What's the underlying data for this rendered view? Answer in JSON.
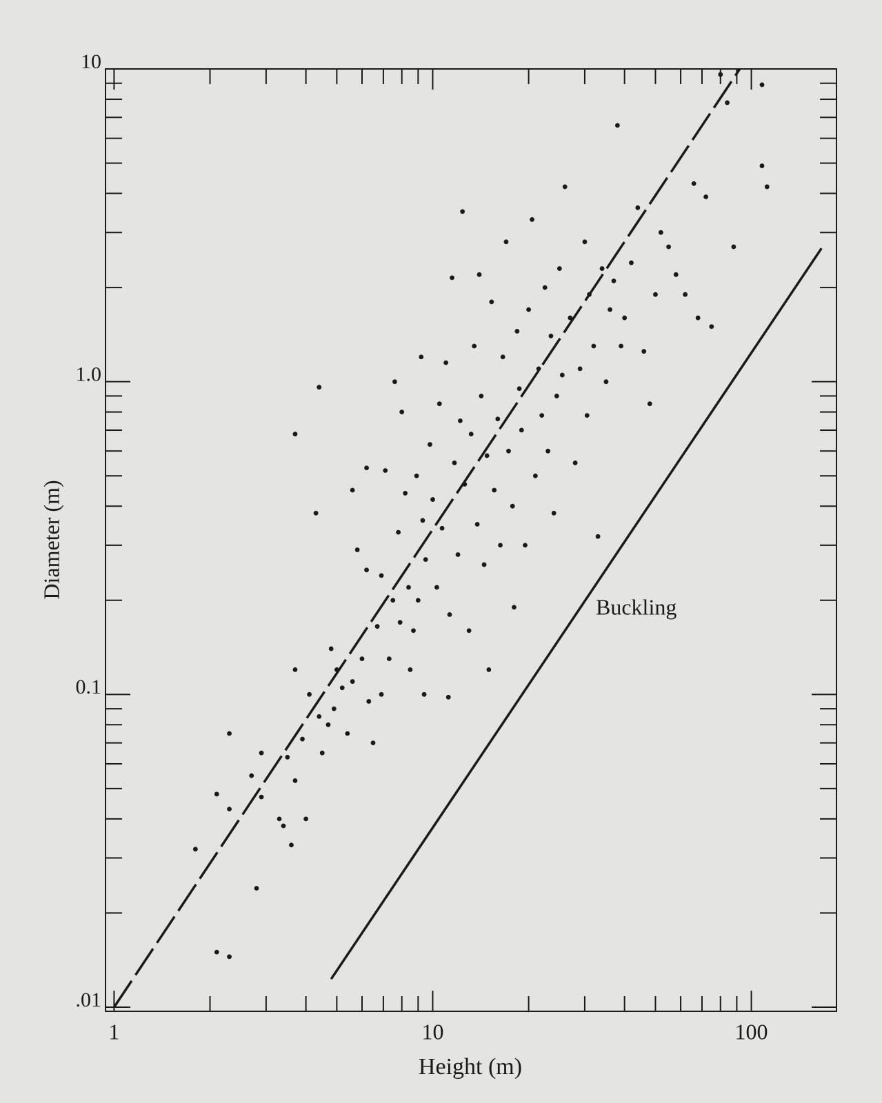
{
  "chart_data": {
    "type": "scatter",
    "xlabel": "Height (m)",
    "ylabel": "Diameter (m)",
    "xscale": "log",
    "yscale": "log",
    "xlim": [
      0.94,
      185
    ],
    "ylim": [
      0.0097,
      10
    ],
    "xticks": [
      1,
      10,
      100
    ],
    "yticks": [
      {
        "value": 0.01,
        "label": ".01"
      },
      0.1,
      {
        "value": 1,
        "label": "1.0"
      },
      10
    ],
    "xminorticks": [
      2,
      3,
      4,
      5,
      6,
      7,
      8,
      9,
      20,
      30,
      40,
      50,
      60,
      70,
      80,
      90
    ],
    "yminorticks": [
      0.02,
      0.03,
      0.04,
      0.05,
      0.06,
      0.07,
      0.08,
      0.09,
      0.2,
      0.3,
      0.4,
      0.5,
      0.6,
      0.7,
      0.8,
      0.9,
      2,
      3,
      4,
      5,
      6,
      7,
      8,
      9
    ],
    "color": "#1a1a1a",
    "x": [
      1.8,
      2.1,
      2.3,
      2.1,
      2.3,
      2.3,
      2.7,
      2.9,
      2.9,
      2.8,
      3.3,
      3.4,
      3.5,
      3.6,
      3.7,
      3.7,
      4.0,
      4.1,
      3.9,
      3.7,
      4.3,
      4.4,
      4.4,
      4.5,
      4.7,
      4.8,
      4.9,
      5.0,
      5.2,
      5.4,
      5.6,
      5.6,
      5.8,
      6.0,
      6.2,
      6.2,
      6.3,
      6.5,
      6.7,
      6.9,
      6.9,
      7.1,
      7.3,
      7.5,
      7.6,
      7.8,
      7.9,
      8.0,
      8.2,
      8.4,
      8.5,
      8.7,
      8.9,
      9.0,
      9.2,
      9.3,
      9.4,
      9.5,
      9.8,
      10.0,
      10.3,
      10.5,
      10.7,
      11.0,
      11.2,
      11.3,
      11.5,
      11.7,
      12.0,
      12.2,
      12.4,
      12.6,
      13.0,
      13.2,
      13.5,
      13.8,
      14.0,
      14.2,
      14.5,
      14.8,
      15.0,
      15.3,
      15.6,
      16.0,
      16.3,
      16.6,
      17.0,
      17.3,
      17.8,
      18.0,
      18.4,
      18.7,
      19.0,
      19.5,
      20.0,
      20.5,
      21.0,
      21.5,
      22.0,
      22.5,
      23.0,
      23.5,
      24.0,
      24.5,
      25.0,
      25.5,
      26.0,
      27.0,
      28.0,
      29.0,
      30.0,
      30.5,
      31.0,
      32.0,
      33.0,
      34.0,
      35.0,
      36.0,
      37.0,
      38.0,
      39.0,
      40.0,
      42.0,
      44.0,
      46.0,
      48.0,
      50.0,
      52.0,
      55.0,
      58.0,
      62.0,
      66.0,
      68.0,
      72.0,
      75.0,
      80.0,
      84.0,
      88.0,
      108.0,
      108.0,
      112.0
    ],
    "y": [
      0.032,
      0.015,
      0.0145,
      0.048,
      0.043,
      0.075,
      0.055,
      0.047,
      0.065,
      0.024,
      0.04,
      0.038,
      0.063,
      0.033,
      0.053,
      0.12,
      0.04,
      0.1,
      0.072,
      0.68,
      0.38,
      0.96,
      0.085,
      0.065,
      0.08,
      0.14,
      0.09,
      0.12,
      0.105,
      0.075,
      0.11,
      0.45,
      0.29,
      0.13,
      0.25,
      0.53,
      0.095,
      0.07,
      0.165,
      0.24,
      0.1,
      0.52,
      0.13,
      0.2,
      1.0,
      0.33,
      0.17,
      0.8,
      0.44,
      0.22,
      0.12,
      0.16,
      0.5,
      0.2,
      1.2,
      0.36,
      0.1,
      0.27,
      0.63,
      0.42,
      0.22,
      0.85,
      0.34,
      1.15,
      0.098,
      0.18,
      2.15,
      0.55,
      0.28,
      0.75,
      3.5,
      0.47,
      0.16,
      0.68,
      1.3,
      0.35,
      2.2,
      0.9,
      0.26,
      0.58,
      0.12,
      1.8,
      0.45,
      0.76,
      0.3,
      1.2,
      2.8,
      0.6,
      0.4,
      0.19,
      1.45,
      0.95,
      0.7,
      0.3,
      1.7,
      3.3,
      0.5,
      1.1,
      0.78,
      2.0,
      0.6,
      1.4,
      0.38,
      0.9,
      2.3,
      1.05,
      4.2,
      1.6,
      0.55,
      1.1,
      2.8,
      0.78,
      1.9,
      1.3,
      0.32,
      2.3,
      1.0,
      1.7,
      2.1,
      6.6,
      1.3,
      1.6,
      2.4,
      3.6,
      1.25,
      0.85,
      1.9,
      3.0,
      2.7,
      2.2,
      1.9,
      4.3,
      1.6,
      3.9,
      1.5,
      9.6,
      7.8,
      2.7,
      8.9,
      4.9,
      4.2
    ],
    "lines": [
      {
        "x": [
          1,
          92
        ],
        "y": [
          0.01,
          10
        ],
        "dashed": true
      },
      {
        "x": [
          4.8,
          166
        ],
        "y": [
          0.0123,
          2.67
        ],
        "dashed": false,
        "label": "Buckling"
      }
    ]
  }
}
